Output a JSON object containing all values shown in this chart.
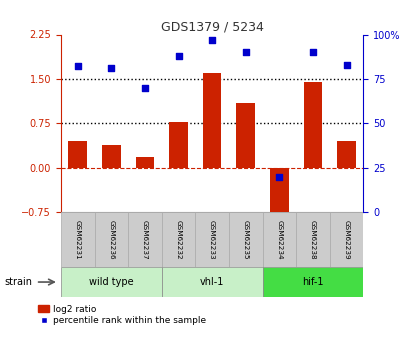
{
  "title": "GDS1379 / 5234",
  "samples": [
    "GSM62231",
    "GSM62236",
    "GSM62237",
    "GSM62232",
    "GSM62233",
    "GSM62235",
    "GSM62234",
    "GSM62238",
    "GSM62239"
  ],
  "log2_ratio": [
    0.45,
    0.38,
    0.18,
    0.78,
    1.6,
    1.1,
    -1.0,
    1.45,
    0.45
  ],
  "percentile_rank": [
    82,
    81,
    70,
    88,
    97,
    90,
    20,
    90,
    83
  ],
  "ylim_left": [
    -0.75,
    2.25
  ],
  "ylim_right": [
    0,
    100
  ],
  "yticks_left": [
    -0.75,
    0,
    0.75,
    1.5,
    2.25
  ],
  "yticks_right": [
    0,
    25,
    50,
    75,
    100
  ],
  "hlines": [
    0.75,
    1.5
  ],
  "hline_zero": 0,
  "bar_color": "#cc2200",
  "dot_color": "#0000cc",
  "bar_width": 0.55,
  "title_color": "#333333",
  "left_axis_color": "#cc2200",
  "right_axis_color": "#0000cc",
  "zero_line_color": "#cc2200",
  "dotted_line_color": "#000000",
  "legend_bar_label": "log2 ratio",
  "legend_dot_label": "percentile rank within the sample",
  "strain_label": "strain",
  "group_data": [
    [
      0,
      3,
      "wild type",
      "#c8f0c8"
    ],
    [
      3,
      6,
      "vhl-1",
      "#c8f0c8"
    ],
    [
      6,
      9,
      "hif-1",
      "#44dd44"
    ]
  ],
  "sample_bg": "#cccccc",
  "group_border": "#888888"
}
